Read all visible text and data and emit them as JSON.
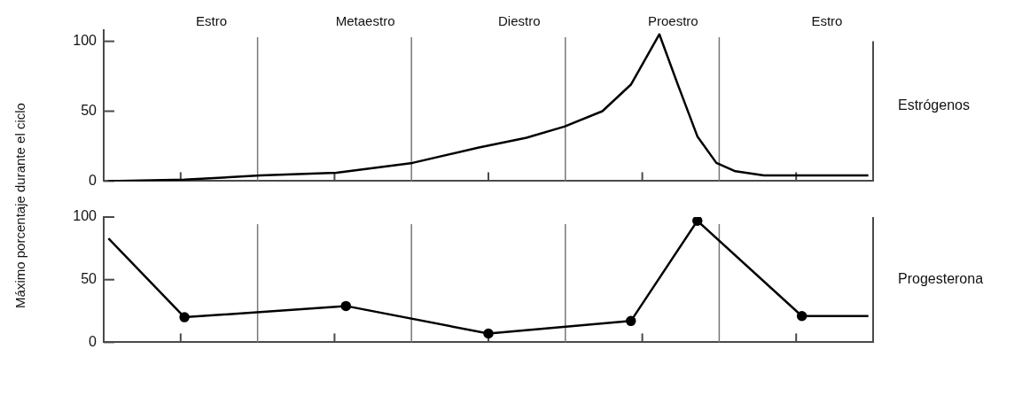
{
  "chart_data": [
    {
      "type": "line",
      "ylabel": "Máximo porcentaje durante el ciclo",
      "annotations": [
        "Estro",
        "Metaestro",
        "Diestro",
        "Proestro",
        "Estro"
      ],
      "categories": [
        null,
        null,
        null,
        null,
        null,
        null,
        null,
        null,
        null,
        null,
        null,
        null,
        null,
        null,
        null,
        null,
        null,
        null,
        null,
        null,
        null,
        null,
        null,
        null,
        null,
        null,
        null,
        null,
        null,
        null,
        null,
        null,
        null,
        null,
        null,
        null,
        null,
        null,
        null,
        null,
        null,
        null,
        null,
        null,
        null,
        null,
        null,
        null,
        null,
        null,
        null,
        null,
        null,
        null,
        null,
        null,
        null,
        null,
        null,
        null,
        null,
        null,
        null,
        null,
        null,
        null,
        null,
        null,
        null,
        null,
        null,
        null,
        null,
        null,
        null,
        null,
        null,
        null,
        null,
        null,
        null
      ],
      "ylim": [
        0,
        108
      ],
      "yticks": [
        0,
        50,
        100
      ],
      "tick_labels": "y",
      "grid": false,
      "legend": false,
      "marker": "none",
      "line_style": "solid",
      "series": [
        {
          "name": "Estrógenos",
          "color": "#000000",
          "values": [
            0,
            null,
            null,
            null,
            null,
            null,
            null,
            null,
            1,
            null,
            null,
            null,
            null,
            null,
            null,
            null,
            4,
            null,
            null,
            null,
            null,
            null,
            null,
            null,
            6,
            null,
            null,
            null,
            null,
            null,
            null,
            null,
            13,
            null,
            null,
            null,
            null,
            null,
            null,
            24,
            null,
            null,
            null,
            null,
            31,
            null,
            null,
            null,
            39,
            null,
            null,
            null,
            50,
            null,
            null,
            69,
            null,
            null,
            105,
            null,
            68,
            null,
            32,
            null,
            13,
            null,
            7,
            null,
            null,
            4,
            null,
            null,
            null,
            null,
            null,
            null,
            null,
            null,
            null,
            null,
            4
          ]
        }
      ]
    },
    {
      "type": "line",
      "categories": [
        null,
        null,
        null,
        null,
        null,
        null,
        null,
        null,
        null,
        null,
        null,
        null,
        null,
        null,
        null,
        null,
        null,
        null,
        null,
        null,
        null,
        null,
        null,
        null,
        null,
        null,
        null,
        null,
        null,
        null,
        null,
        null,
        null,
        null,
        null,
        null,
        null,
        null,
        null,
        null,
        null,
        null,
        null,
        null,
        null,
        null,
        null,
        null,
        null,
        null,
        null,
        null,
        null,
        null,
        null,
        null,
        null,
        null,
        null,
        null,
        null,
        null,
        null,
        null,
        null,
        null,
        null,
        null,
        null,
        null,
        null,
        null,
        null,
        null,
        null,
        null,
        null,
        null,
        null,
        null,
        null
      ],
      "ylim": [
        0,
        100
      ],
      "yticks": [
        0,
        50,
        100
      ],
      "tick_labels": "y",
      "grid": false,
      "legend": false,
      "marker": "circle",
      "line_style": "solid",
      "series": [
        {
          "name": "Progesterona",
          "color": "#000000",
          "values": [
            83,
            null,
            null,
            null,
            null,
            null,
            null,
            null,
            20,
            null,
            null,
            null,
            null,
            null,
            null,
            null,
            null,
            null,
            null,
            null,
            null,
            null,
            null,
            null,
            null,
            29,
            null,
            null,
            null,
            null,
            null,
            null,
            null,
            null,
            null,
            null,
            null,
            null,
            null,
            null,
            7,
            null,
            null,
            null,
            null,
            null,
            null,
            null,
            null,
            null,
            null,
            null,
            null,
            null,
            null,
            17,
            null,
            null,
            null,
            null,
            null,
            null,
            97,
            null,
            null,
            null,
            null,
            null,
            null,
            null,
            null,
            null,
            null,
            21,
            null,
            null,
            null,
            null,
            null,
            null,
            21
          ]
        }
      ]
    }
  ]
}
